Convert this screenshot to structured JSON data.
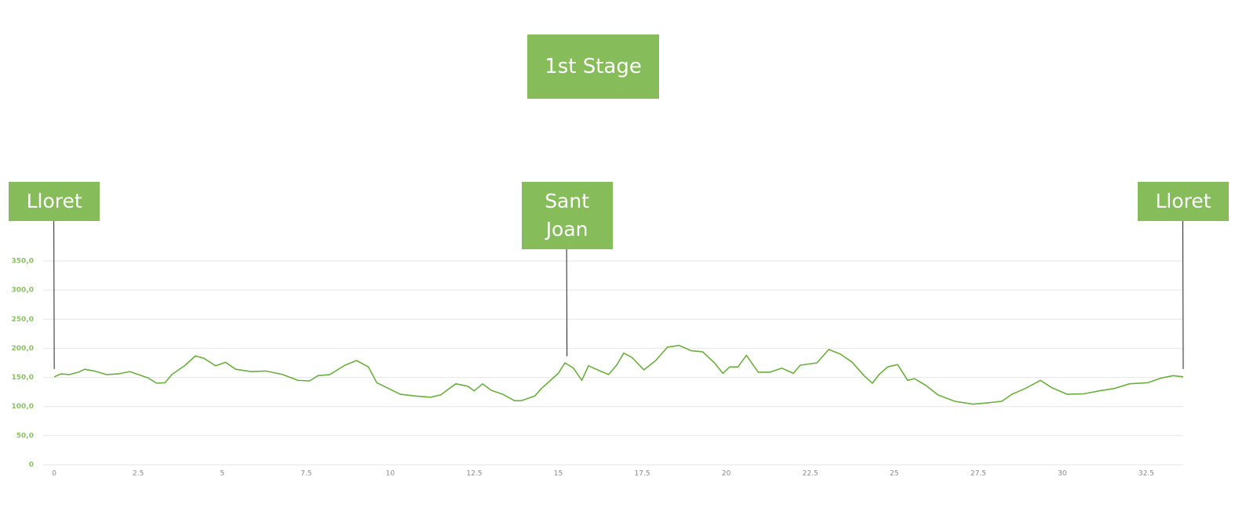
{
  "chart_data": {
    "type": "line",
    "title": "1st Stage",
    "x": [
      0,
      0.2,
      0.45,
      0.72,
      0.9,
      1.2,
      1.55,
      1.9,
      2.25,
      2.5,
      2.8,
      3.05,
      3.3,
      3.5,
      3.9,
      4.2,
      4.45,
      4.8,
      5.1,
      5.4,
      5.85,
      6.3,
      6.8,
      7.25,
      7.6,
      7.85,
      8.2,
      8.65,
      9.0,
      9.35,
      9.6,
      9.95,
      10.3,
      10.75,
      11.2,
      11.5,
      11.95,
      12.3,
      12.5,
      12.75,
      13.0,
      13.35,
      13.7,
      13.9,
      14.3,
      14.5,
      14.75,
      15.0,
      15.2,
      15.45,
      15.7,
      15.9,
      16.25,
      16.5,
      16.75,
      16.95,
      17.2,
      17.55,
      17.9,
      18.25,
      18.6,
      18.95,
      19.3,
      19.65,
      19.9,
      20.1,
      20.35,
      20.6,
      20.95,
      21.3,
      21.65,
      22.0,
      22.2,
      22.7,
      23.05,
      23.4,
      23.75,
      24.1,
      24.35,
      24.55,
      24.8,
      25.1,
      25.4,
      25.6,
      25.95,
      26.3,
      26.8,
      27.35,
      27.7,
      28.2,
      28.5,
      28.9,
      29.35,
      29.7,
      30.15,
      30.65,
      31.1,
      31.55,
      32.0,
      32.55,
      32.95,
      33.3,
      33.6
    ],
    "values": [
      151,
      156,
      155,
      159,
      164,
      161,
      155,
      156,
      160,
      155,
      149,
      140,
      141,
      155,
      171,
      187,
      183,
      170,
      176,
      164,
      160,
      161,
      155,
      145,
      144,
      153,
      155,
      171,
      179,
      168,
      141,
      131,
      121,
      118,
      116,
      120,
      139,
      135,
      127,
      139,
      128,
      121,
      110,
      110,
      118,
      131,
      144,
      157,
      175,
      166,
      145,
      170,
      161,
      155,
      172,
      192,
      184,
      163,
      179,
      202,
      205,
      196,
      194,
      175,
      157,
      168,
      168,
      188,
      159,
      159,
      166,
      157,
      171,
      175,
      198,
      190,
      176,
      153,
      140,
      155,
      168,
      172,
      145,
      148,
      136,
      120,
      109,
      104,
      106,
      109,
      121,
      131,
      145,
      132,
      121,
      122,
      127,
      131,
      139,
      141,
      149,
      153,
      151
    ],
    "color": "#6aaf3d",
    "xlim": [
      -0.33,
      33.6
    ],
    "ylim": [
      0,
      350
    ],
    "xticks": [
      0,
      2.5,
      5,
      7.5,
      10,
      12.5,
      15,
      17.5,
      20,
      22.5,
      25,
      27.5,
      30,
      32.5
    ],
    "yticks": [
      0,
      {
        "value": 50,
        "label": "50,0"
      },
      {
        "value": 100,
        "label": "100,0"
      },
      {
        "value": 150,
        "label": "150,0"
      },
      {
        "value": 200,
        "label": "200,0"
      },
      {
        "value": 250,
        "label": "250,0"
      },
      {
        "value": 300,
        "label": "300,0"
      },
      {
        "value": 350,
        "label": "350,0"
      }
    ],
    "grid": true,
    "annotations": [
      {
        "text": "Lloret",
        "x": 0
      },
      {
        "text": "Sant Joan",
        "x": 15.26
      },
      {
        "text": "Lloret",
        "x": 33.6
      }
    ]
  }
}
